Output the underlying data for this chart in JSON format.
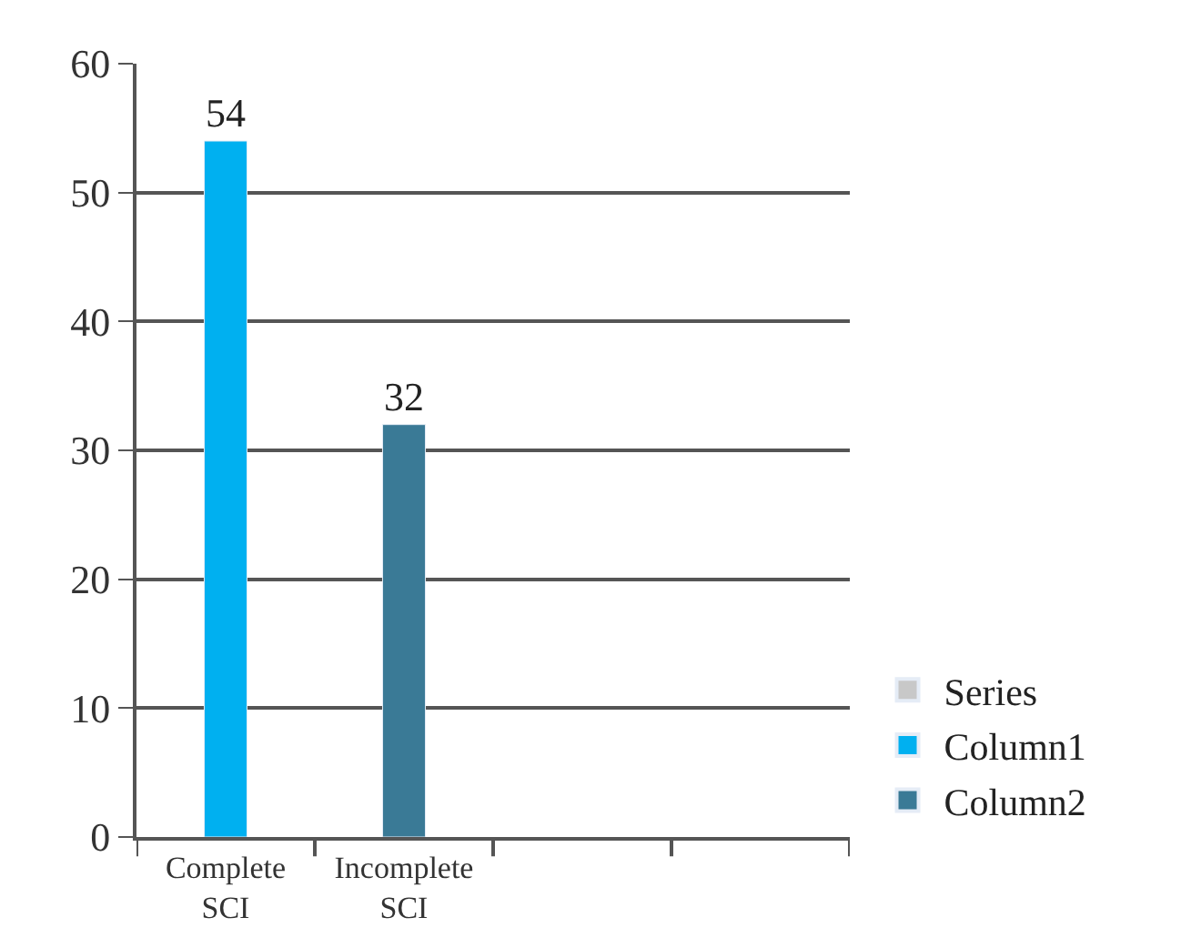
{
  "chart_data": {
    "type": "bar",
    "categories": [
      "Complete SCI",
      "Incomplete SCI",
      null,
      null
    ],
    "series": [
      {
        "name": "Series",
        "color": "#c8c8c8",
        "values": [
          null,
          null,
          null,
          null
        ]
      },
      {
        "name": "Column1",
        "color": "#00b0f0",
        "values": [
          54,
          null,
          null,
          null
        ]
      },
      {
        "name": "Column2",
        "color": "#3a7a96",
        "values": [
          null,
          32,
          null,
          null
        ]
      }
    ],
    "ylim": [
      0,
      60
    ],
    "yticks": [
      0,
      10,
      20,
      30,
      40,
      50,
      60
    ],
    "grid": "y",
    "legend": "right",
    "data_labels": true
  }
}
